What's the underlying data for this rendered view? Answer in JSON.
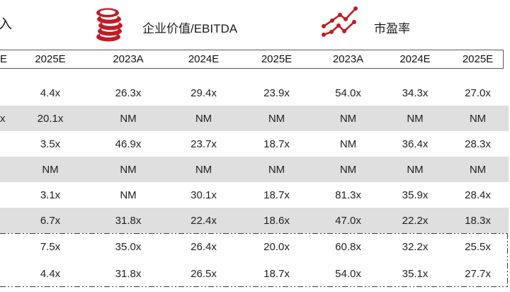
{
  "legend": {
    "item_revenue_partial": "入",
    "item_ev_ebitda": "企业价值/EBITDA",
    "item_pe": "市盈率",
    "icons": [
      "coins-icon",
      "line-chart-icon"
    ]
  },
  "colors": {
    "accent_red": "#C21B26",
    "row_alt_gray": "#DFDFDF",
    "text": "#1F1F1F",
    "header_border": "#595959"
  },
  "table": {
    "headers": [
      "E",
      "2025E",
      "2023A",
      "2024E",
      "2025E",
      "2023A",
      "2024E",
      "2025E"
    ],
    "rows": [
      {
        "cells": [
          "",
          "4.4x",
          "26.3x",
          "29.4x",
          "23.9x",
          "54.0x",
          "34.3x",
          "27.0x"
        ],
        "shaded": false,
        "summary": false
      },
      {
        "cells": [
          "x",
          "20.1x",
          "NM",
          "NM",
          "NM",
          "NM",
          "NM",
          "NM"
        ],
        "shaded": true,
        "summary": false
      },
      {
        "cells": [
          "",
          "3.5x",
          "46.9x",
          "23.7x",
          "18.7x",
          "NM",
          "36.4x",
          "28.3x"
        ],
        "shaded": false,
        "summary": false
      },
      {
        "cells": [
          "",
          "NM",
          "NM",
          "NM",
          "NM",
          "NM",
          "NM",
          "NM"
        ],
        "shaded": true,
        "summary": false
      },
      {
        "cells": [
          "",
          "3.1x",
          "NM",
          "30.1x",
          "18.7x",
          "81.3x",
          "35.9x",
          "28.4x"
        ],
        "shaded": false,
        "summary": false
      },
      {
        "cells": [
          "",
          "6.7x",
          "31.8x",
          "22.4x",
          "18.6x",
          "47.0x",
          "22.2x",
          "18.3x"
        ],
        "shaded": true,
        "summary": false
      },
      {
        "cells": [
          "",
          "7.5x",
          "35.0x",
          "26.4x",
          "20.0x",
          "60.8x",
          "32.2x",
          "25.5x"
        ],
        "shaded": false,
        "summary": true
      },
      {
        "cells": [
          "",
          "4.4x",
          "31.8x",
          "26.5x",
          "18.7x",
          "54.0x",
          "35.1x",
          "27.7x"
        ],
        "shaded": false,
        "summary": true
      }
    ]
  }
}
